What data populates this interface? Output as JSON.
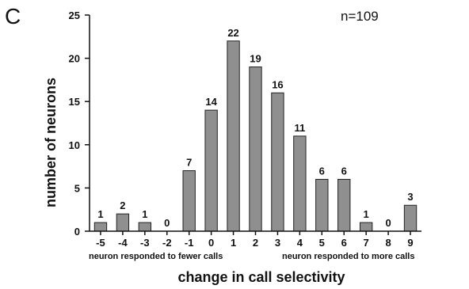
{
  "panel_label": "C",
  "colors": {
    "bar_fill": "#8f8f8f",
    "bar_stroke": "#222222",
    "axis": "#111111"
  },
  "chart_data": {
    "type": "bar",
    "categories": [
      "-5",
      "-4",
      "-3",
      "-2",
      "-1",
      "0",
      "1",
      "2",
      "3",
      "4",
      "5",
      "6",
      "7",
      "8",
      "9"
    ],
    "values": [
      1,
      2,
      1,
      0,
      7,
      14,
      22,
      19,
      16,
      11,
      6,
      6,
      1,
      0,
      3
    ],
    "value_labels": [
      "1",
      "2",
      "1",
      "0",
      "7",
      "14",
      "22",
      "19",
      "16",
      "11",
      "6",
      "6",
      "1",
      "0",
      "3"
    ],
    "xlabel": "change in call selectivity",
    "ylabel": "number of neurons",
    "ylim": [
      0,
      25
    ],
    "yticks": [
      0,
      5,
      10,
      15,
      20,
      25
    ],
    "ytick_labels": [
      "0",
      "5",
      "10",
      "15",
      "20",
      "25"
    ],
    "annotations": {
      "count": "n=109",
      "left_note": "neuron responded to fewer calls",
      "right_note": "neuron responded to more calls"
    },
    "grid": false,
    "legend": "none"
  }
}
